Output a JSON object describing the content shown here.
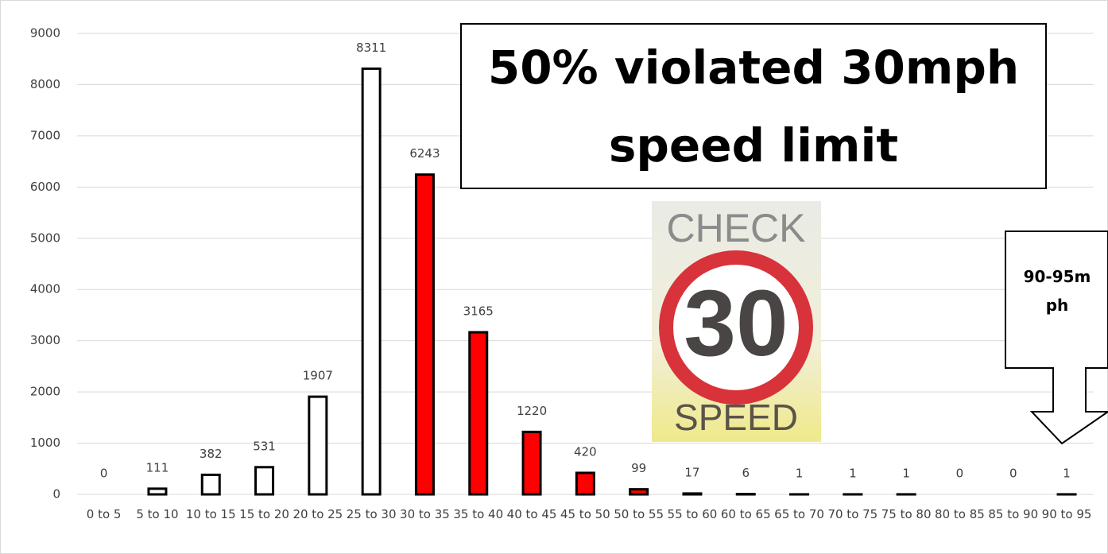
{
  "chart_data": {
    "type": "bar",
    "categories": [
      "0 to 5",
      "5 to 10",
      "10 to 15",
      "15 to 20",
      "20 to 25",
      "25 to 30",
      "30 to 35",
      "35 to 40",
      "40 to 45",
      "45 to 50",
      "50 to 55",
      "55 to 60",
      "60 to 65",
      "65 to 70",
      "70 to 75",
      "75 to 80",
      "80 to 85",
      "85 to 90",
      "90 to 95"
    ],
    "values": [
      0,
      111,
      382,
      531,
      1907,
      8311,
      6243,
      3165,
      1220,
      420,
      99,
      17,
      6,
      1,
      1,
      1,
      0,
      0,
      1
    ],
    "colors": [
      "#ffffff",
      "#ffffff",
      "#ffffff",
      "#ffffff",
      "#ffffff",
      "#ffffff",
      "#ff0000",
      "#ff0000",
      "#ff0000",
      "#ff0000",
      "#ff0000",
      "#ffffff",
      "#ffffff",
      "#ffffff",
      "#ffffff",
      "#ffffff",
      "#ffffff",
      "#ffffff",
      "#ffffff"
    ],
    "ylim": [
      0,
      9000
    ],
    "yticks": [
      0,
      1000,
      2000,
      3000,
      4000,
      5000,
      6000,
      7000,
      8000,
      9000
    ],
    "grid": true,
    "annotations": [
      "50% violated 30mph speed limit",
      "90-95mph"
    ],
    "sign_text": [
      "CHECK",
      "30",
      "SPEED"
    ]
  }
}
